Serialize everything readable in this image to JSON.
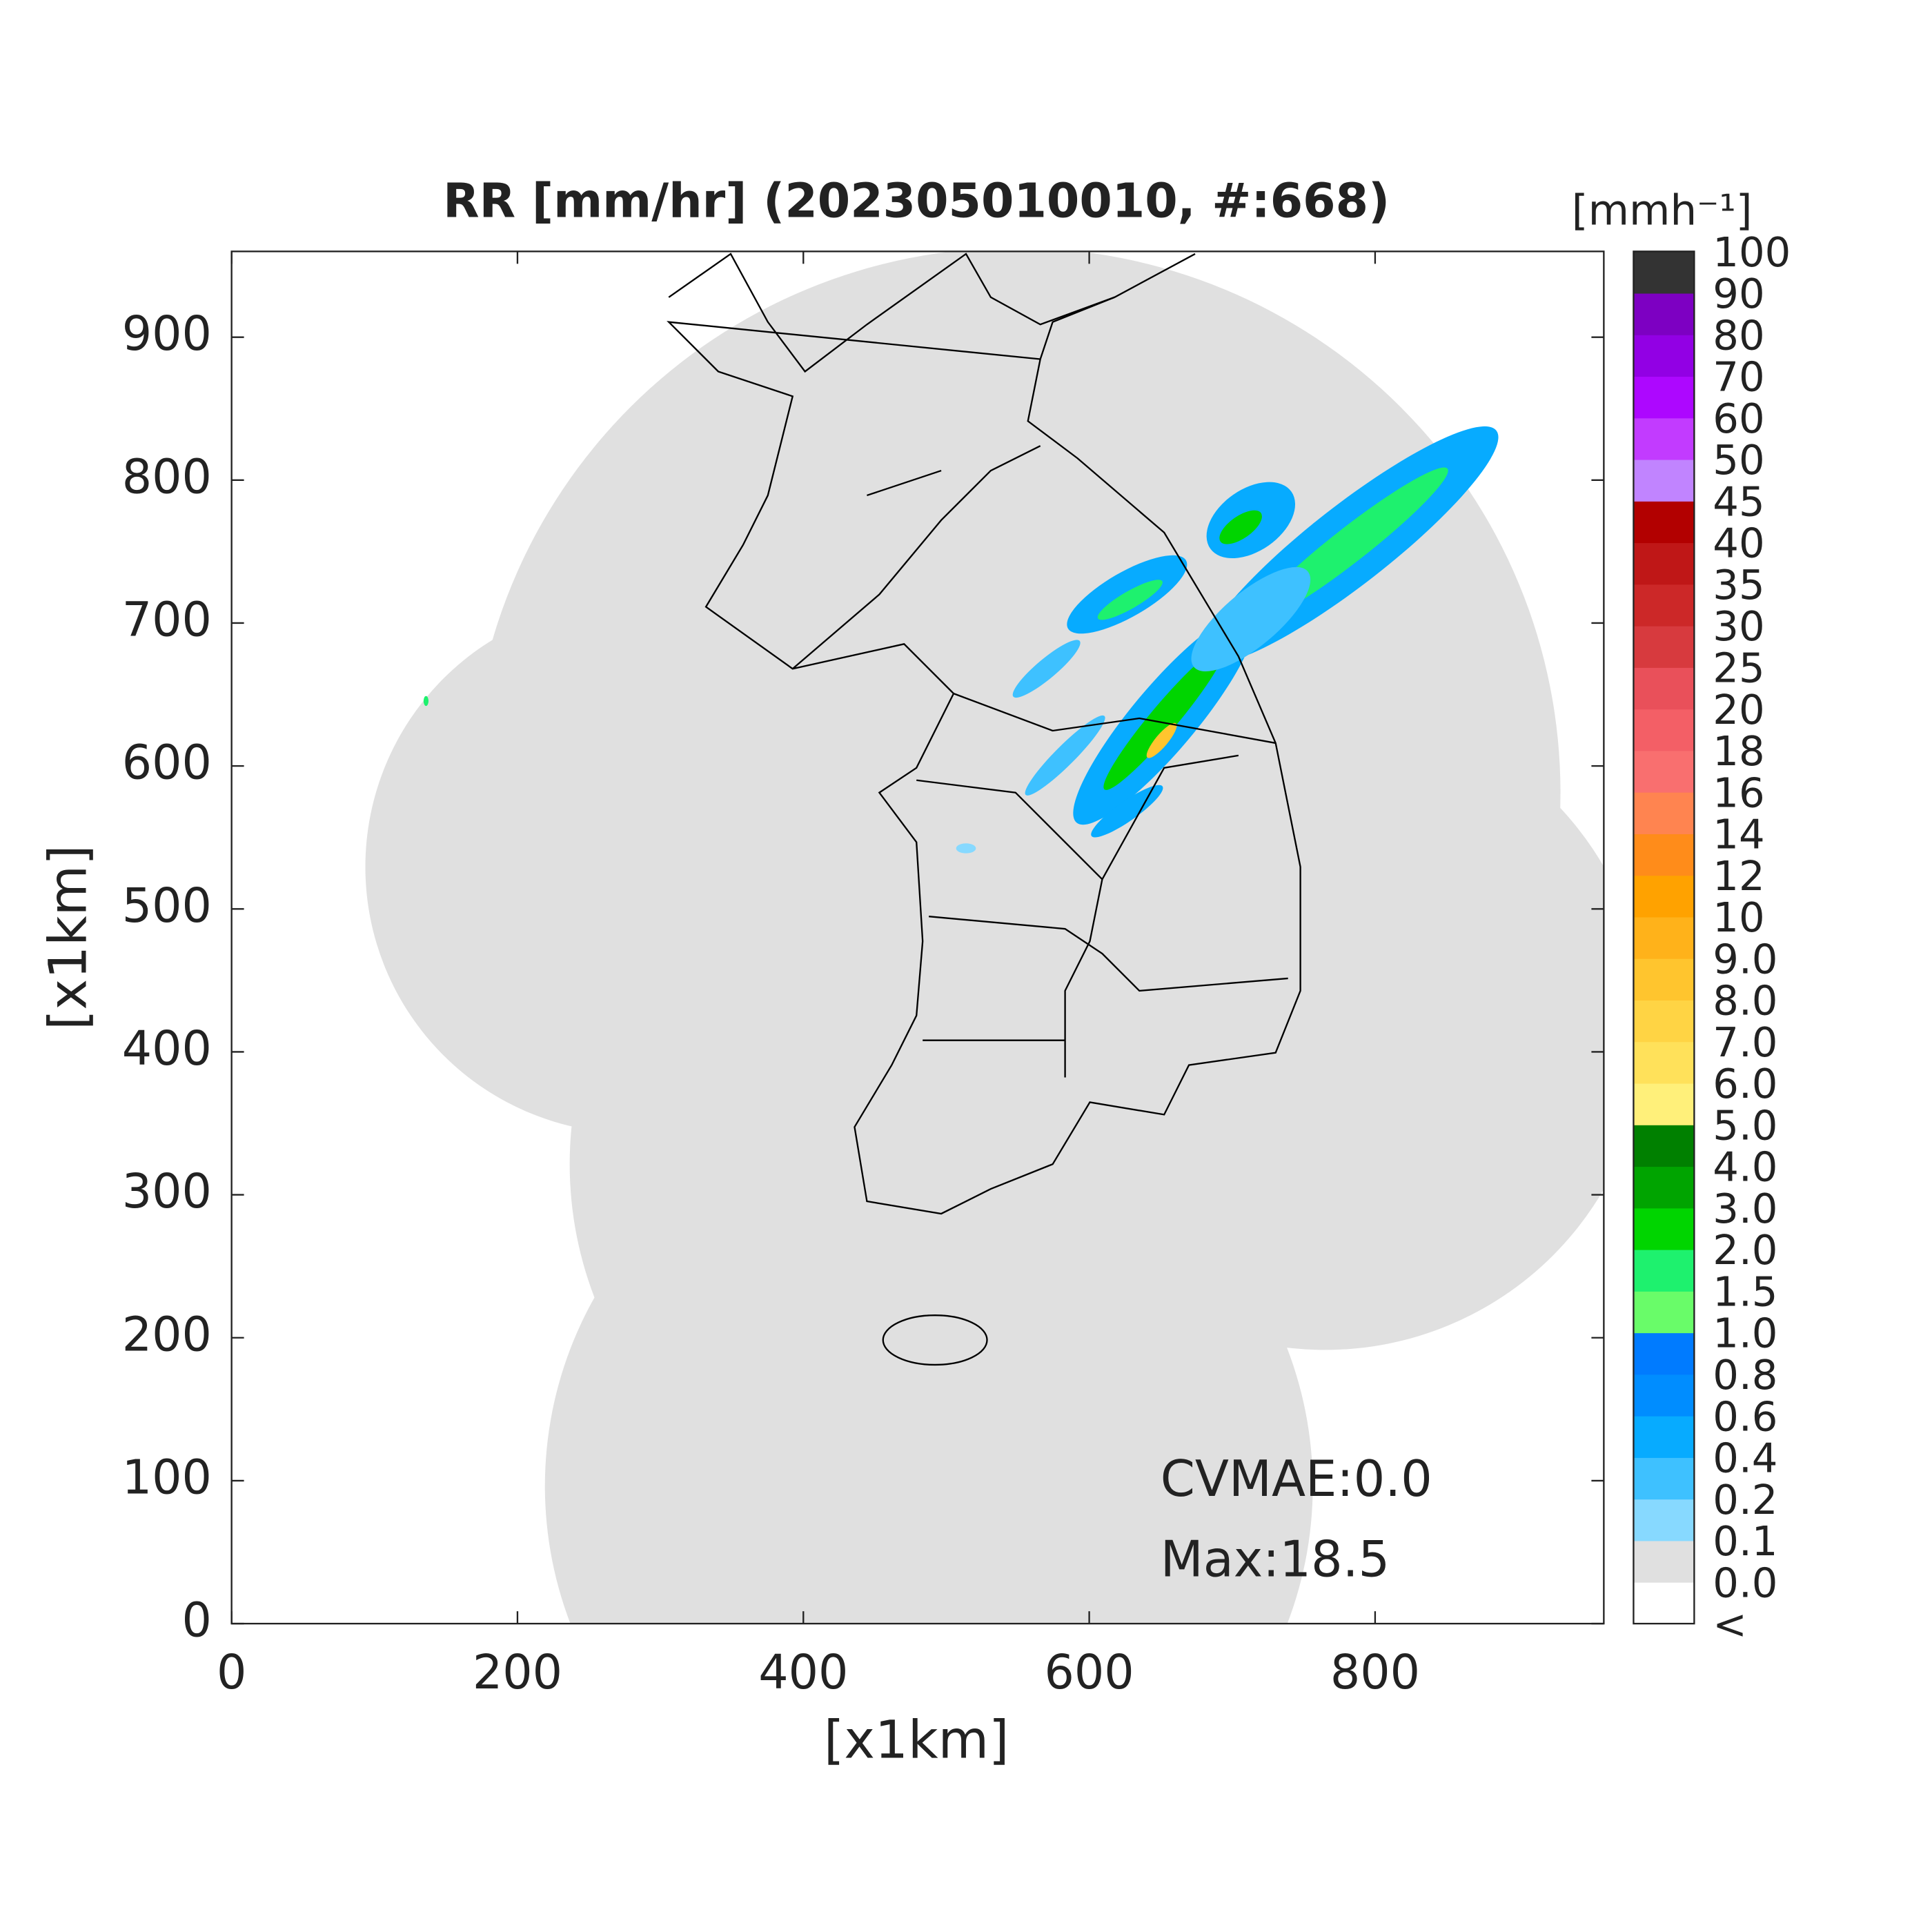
{
  "chart_data": {
    "type": "map",
    "title": "RR [mm/hr] (202305010010, #:668)",
    "xlabel": "[x1km]",
    "ylabel": "[x1km]",
    "xlim": [
      0,
      960
    ],
    "ylim": [
      0,
      960
    ],
    "xticks": [
      0,
      200,
      400,
      600,
      800
    ],
    "yticks": [
      0,
      100,
      200,
      300,
      400,
      500,
      600,
      700,
      800,
      900
    ],
    "annotations": [
      "CVMAE:0.0",
      "Max:18.5"
    ],
    "colorbar": {
      "label": "[mmh⁻¹]",
      "levels": [
        "<",
        "0.0",
        "0.1",
        "0.2",
        "0.4",
        "0.6",
        "0.8",
        "1.0",
        "1.5",
        "2.0",
        "3.0",
        "4.0",
        "5.0",
        "6.0",
        "7.0",
        "8.0",
        "9.0",
        "10",
        "12",
        "14",
        "16",
        "18",
        "20",
        "25",
        "30",
        "35",
        "40",
        "45",
        "50",
        "60",
        "70",
        "80",
        "90",
        "100"
      ],
      "colors": [
        "#ffffff",
        "#e0e0e0",
        "#87d9ff",
        "#3ec1ff",
        "#07abff",
        "#008dff",
        "#007bff",
        "#69fc69",
        "#1ef16e",
        "#00d500",
        "#00a400",
        "#008000",
        "#fff07a",
        "#ffe15a",
        "#ffd444",
        "#ffc52e",
        "#ffb21a",
        "#ffa200",
        "#ff8c1a",
        "#ff8450",
        "#f96f6f",
        "#f35f66",
        "#e9505a",
        "#d73a3e",
        "#cc2828",
        "#bf1717",
        "#b20000",
        "#c184ff",
        "#c23bff",
        "#ad07ff",
        "#9200e4",
        "#7d00c2",
        "#333333"
      ]
    }
  }
}
